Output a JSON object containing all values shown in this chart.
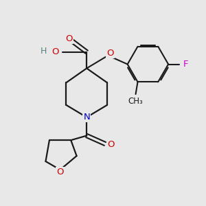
{
  "background_color": "#e8e8e8",
  "figsize": [
    3.0,
    3.0
  ],
  "dpi": 100,
  "bond_color": "#1a1a1a",
  "atom_colors": {
    "O": "#cc0000",
    "N": "#0000cc",
    "F": "#cc00cc",
    "C": "#1a1a1a",
    "H": "#5a8080"
  }
}
